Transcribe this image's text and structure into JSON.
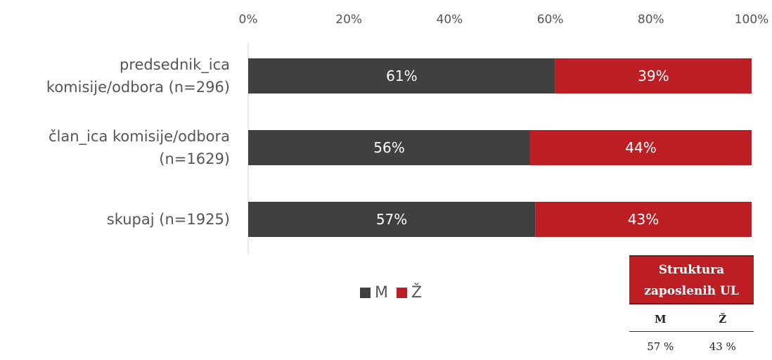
{
  "chart_data": {
    "type": "bar",
    "orientation": "horizontal",
    "stacked": "percent",
    "categories": [
      [
        "predsednik_ica",
        "komisije/odbora (n=296)"
      ],
      [
        "član_ica komisije/odbora",
        "(n=1629)"
      ],
      [
        "skupaj (n=1925)"
      ]
    ],
    "series": [
      {
        "name": "M",
        "values": [
          61,
          56,
          57
        ],
        "labels": [
          "61%",
          "56%",
          "57%"
        ],
        "color": "#404040"
      },
      {
        "name": "Ž",
        "values": [
          39,
          44,
          43
        ],
        "labels": [
          "39%",
          "44%",
          "43%"
        ],
        "color": "#bd1e24"
      }
    ],
    "xticks": [
      "0%",
      "20%",
      "40%",
      "60%",
      "80%",
      "100%"
    ],
    "xlim": [
      0,
      100
    ],
    "axis_position": "top",
    "grid": false,
    "legend_position": "bottom"
  },
  "structure_table": {
    "title_line1": "Struktura",
    "title_line2": "zaposlenih UL",
    "headers": [
      "M",
      "Ž"
    ],
    "values": [
      "57 %",
      "43 %"
    ]
  }
}
